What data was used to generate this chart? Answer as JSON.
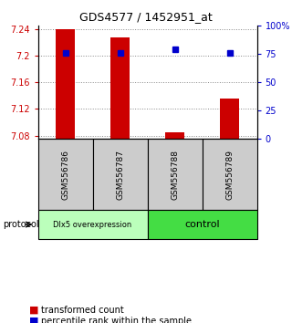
{
  "title": "GDS4577 / 1452951_at",
  "samples": [
    "GSM556786",
    "GSM556787",
    "GSM556788",
    "GSM556789"
  ],
  "bar_values": [
    7.24,
    7.228,
    7.085,
    7.135
  ],
  "percentile_values": [
    76,
    76,
    79,
    76
  ],
  "bar_bottom": 7.075,
  "ylim_left": [
    7.075,
    7.245
  ],
  "ylim_right": [
    0,
    100
  ],
  "yticks_left": [
    7.08,
    7.12,
    7.16,
    7.2,
    7.24
  ],
  "yticks_right": [
    0,
    25,
    50,
    75,
    100
  ],
  "ytick_labels_right": [
    "0",
    "25",
    "50",
    "75",
    "100%"
  ],
  "bar_color": "#cc0000",
  "dot_color": "#0000cc",
  "groups": [
    {
      "label": "Dlx5 overexpression",
      "color": "#bbffbb",
      "samples": [
        0,
        1
      ]
    },
    {
      "label": "control",
      "color": "#44dd44",
      "samples": [
        2,
        3
      ]
    }
  ],
  "protocol_label": "protocol",
  "legend_bar_label": "transformed count",
  "legend_dot_label": "percentile rank within the sample",
  "bar_width": 0.35,
  "grid_color": "#888888",
  "sample_box_color": "#cccccc",
  "bg_color": "#ffffff"
}
